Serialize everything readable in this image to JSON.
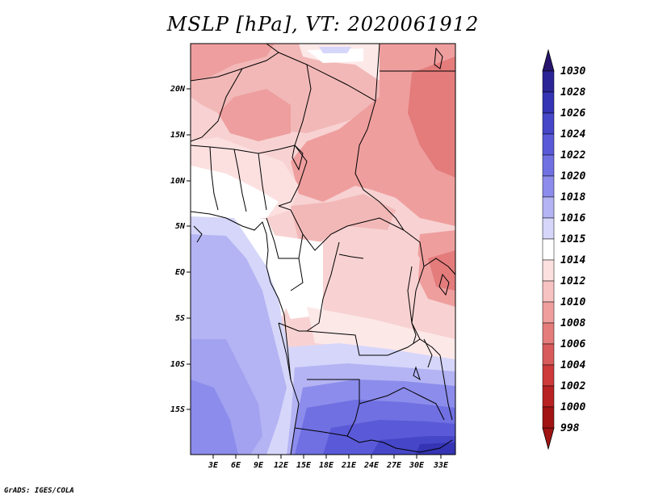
{
  "title": "MSLP [hPa], VT: 2020061912",
  "credit": "GrADS: IGES/COLA",
  "map": {
    "lat_labels": [
      "20N",
      "15N",
      "10N",
      "5N",
      "EQ",
      "5S",
      "10S",
      "15S"
    ],
    "lon_labels": [
      "3E",
      "6E",
      "9E",
      "12E",
      "15E",
      "18E",
      "21E",
      "24E",
      "27E",
      "30E",
      "33E"
    ],
    "field": "mean sea level pressure"
  },
  "colorbar": {
    "labels": [
      "1030",
      "1028",
      "1026",
      "1024",
      "1022",
      "1020",
      "1018",
      "1016",
      "1015",
      "1014",
      "1012",
      "1010",
      "1008",
      "1006",
      "1004",
      "1002",
      "1000",
      "998"
    ],
    "colors": [
      "#28146e",
      "#2a2494",
      "#3434b4",
      "#4646c8",
      "#5a5ad8",
      "#7070e2",
      "#8c8cec",
      "#b4b4f4",
      "#d6d6fa",
      "#ffffff",
      "#fce0e0",
      "#f7c2c2",
      "#ef9e9e",
      "#e47c7c",
      "#d85a5a",
      "#cc3a3a",
      "#b82222",
      "#a01414"
    ]
  }
}
